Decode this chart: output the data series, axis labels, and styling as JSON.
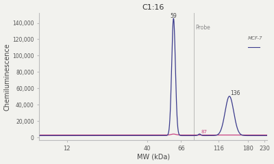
{
  "title": "C1:16",
  "xlabel": "MW (kDa)",
  "ylabel": "Chemiluminescence",
  "xlim_log": [
    0.9,
    2.38
  ],
  "ylim": [
    -3000,
    152000
  ],
  "xticks": [
    12,
    40,
    66,
    116,
    180,
    230
  ],
  "yticks": [
    0,
    20000,
    40000,
    60000,
    80000,
    100000,
    120000,
    140000
  ],
  "ytick_labels": [
    "0",
    "20,000",
    "40,000",
    "60,000",
    "80,000",
    "100,000",
    "120,000",
    "140,000"
  ],
  "bg_color": "#f2f2ee",
  "line_color_blue": "#3a3a8c",
  "line_color_pink": "#c84080",
  "peak1_x": 59,
  "peak1_y": 143000,
  "peak1_label": "59",
  "peak2_x": 136,
  "peak2_y": 48000,
  "peak2_label": "136",
  "dip_x": 87,
  "dip_y": 3200,
  "dip_label": "87",
  "probe_line_x": 80,
  "probe_label": "Probe",
  "legend_text": "MCF-7",
  "legend_line": "——"
}
